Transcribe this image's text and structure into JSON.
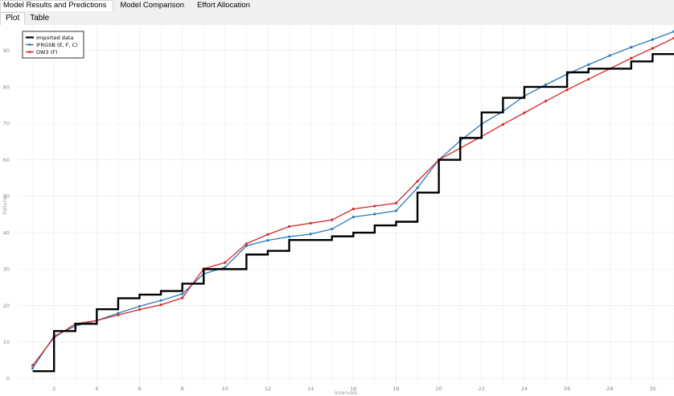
{
  "tabs": [
    {
      "label": "Model Results and Predictions",
      "active": true
    },
    {
      "label": "Model Comparison",
      "active": false
    },
    {
      "label": "Effort Allocation",
      "active": false
    }
  ],
  "subtabs": [
    {
      "label": "Plot",
      "active": true
    },
    {
      "label": "Table",
      "active": false
    }
  ],
  "chart_data": {
    "type": "line",
    "xlabel": "Intervals",
    "ylabel": "Failures",
    "xlim": [
      0.3,
      31
    ],
    "ylim": [
      -1.5,
      97
    ],
    "xticks": [
      2,
      4,
      6,
      8,
      10,
      12,
      14,
      16,
      18,
      20,
      22,
      24,
      26,
      28,
      30
    ],
    "yticks": [
      0,
      10,
      20,
      30,
      40,
      50,
      60,
      70,
      80,
      90
    ],
    "grid": true,
    "legend_position": "top-left",
    "series": [
      {
        "name": "Imported data",
        "style": "step",
        "color": "#000000",
        "x": [
          1,
          2,
          3,
          4,
          5,
          6,
          7,
          8,
          9,
          10,
          11,
          12,
          13,
          14,
          15,
          16,
          17,
          18,
          19,
          20,
          21,
          22,
          23,
          24,
          25,
          26,
          27,
          28,
          29,
          30,
          31
        ],
        "values": [
          2,
          13,
          15,
          19,
          22,
          23,
          24,
          26,
          30,
          30,
          34,
          35,
          38,
          38,
          39,
          40,
          42,
          43,
          51,
          60,
          66,
          73,
          77,
          80,
          80,
          84,
          85,
          85,
          87,
          89,
          89
        ]
      },
      {
        "name": "IFRGSB (E, F, C)",
        "style": "line-markers",
        "color": "#2a7ab8",
        "x": [
          1,
          2,
          3,
          4,
          5,
          6,
          7,
          8,
          9,
          10,
          11,
          12,
          13,
          14,
          15,
          16,
          17,
          18,
          19,
          20,
          21,
          22,
          23,
          24,
          25,
          26,
          27,
          28,
          29,
          30,
          31
        ],
        "values": [
          2.8,
          11.6,
          14.4,
          15.9,
          17.9,
          19.8,
          21.4,
          23.2,
          28.7,
          30.5,
          36.4,
          37.9,
          38.9,
          39.6,
          41,
          44.3,
          45.1,
          46,
          52.3,
          60,
          65.2,
          69.8,
          73.3,
          77.5,
          80.6,
          83.5,
          86.1,
          88.6,
          90.9,
          93,
          95.2
        ]
      },
      {
        "name": "DW3 (F)",
        "style": "line-markers",
        "color": "#d62728",
        "x": [
          1,
          2,
          3,
          4,
          5,
          6,
          7,
          8,
          9,
          10,
          11,
          12,
          13,
          14,
          15,
          16,
          17,
          18,
          19,
          20,
          21,
          22,
          23,
          24,
          25,
          26,
          27,
          28,
          29,
          30,
          31
        ],
        "values": [
          3.6,
          11.2,
          15,
          15.9,
          17.4,
          18.9,
          20.2,
          22.1,
          30.1,
          31.8,
          37,
          39.5,
          41.7,
          42.6,
          43.5,
          46.5,
          47.3,
          48.1,
          54.1,
          60,
          63.2,
          66.4,
          69.7,
          72.9,
          76.1,
          79.2,
          82.1,
          85,
          87.9,
          90.6,
          93.4
        ]
      }
    ]
  }
}
